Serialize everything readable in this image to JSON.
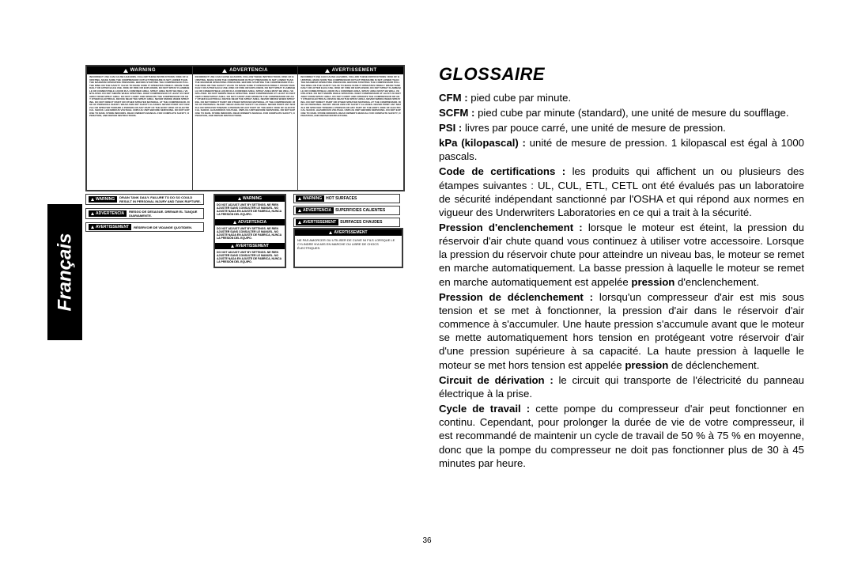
{
  "tab_label": "Français",
  "page_number": "36",
  "large_warning": {
    "headers": [
      "WARNING",
      "ADVERTENCIA",
      "AVERTISSEMENT"
    ],
    "filler": "INCORRECT USE CAN CAUSE HAZARDS. FOLLOW THESE INSTRUCTIONS: RISK OF BURSTING. MAKE SURE THE COMPRESSOR OUTLET PRESSURE IS SET LOWER THAN THE MAXIMUM OPERATING PRESSURE. BEFORE STARTING THE COMPRESSOR PULL THE RING ON THE SAFETY VALVE TO MAKE SURE IT OPERATES FREELY. DRAIN TANK DAILY OR AFTER EACH USE. RISK OF FIRE OR EXPLOSION. DO NOT SPRAY FLAMMABLE OR COMBUSTIBLE LIQUID IN A CONFINED AREA. SPRAY AREA MUST BE WELL VENTILATED. DO NOT SMOKE WHILE SPRAYING. KEEP COMPRESSOR AT LEAST 20 FEET AWAY FROM SPRAY AREA. DO NOT CARRY AND OPERATE THE COMPRESSOR OR ANY OTHER ELECTRICAL DEVICE NEAR THE SPRAY AREA. NEVER SMOKE WHEN SPRAYING. DO NOT DIRECT PAINT OR OTHER SPRAYED MATERIAL AT THE COMPRESSOR. RISK OF PERSONAL INJURY. WEAR ANSI Z87 SAFETY GLASSES. NEVER POINT ANY NOZZLE OR SPRAYER TOWARD A PERSON OR ANY PART OF THE BODY. RISK OF ELECTRICAL SHOCK. HAZARDOUS VOLTAGE. UNPLUG UNIT BEFORE SERVICING. DO NOT EXPOSE TO RAIN. STORE INDOORS. READ OWNER'S MANUAL FOR COMPLETE SAFETY, OPERATION, AND REPAIR INSTRUCTIONS."
  },
  "side_labels": [
    {
      "badge": "WARNING",
      "rest": "DRAIN TANK DAILY. FAILURE TO DO SO COULD RESULT IN PERSONAL INJURY AND TANK RUPTURE."
    },
    {
      "badge": "ADVERTENCIA",
      "rest": "RIESGO DE DESAGUE. DRENAR EL TANQUE DIARIAMENTE."
    },
    {
      "badge": "AVERTISSEMENT",
      "rest": "RÉSERVOIR DE VIDANGE QUOTIDIEN."
    }
  ],
  "small_box": {
    "headers": [
      "WARNING",
      "ADVERTENCIA",
      "AVERTISSEMENT"
    ],
    "body": "DO NOT ADJUST UNIT BY SETTINGS.\nNE RIEN AJUSTER SANS CONSULTER LE MANUEL.\nNO AJUSTE NADA EN AJUSTE DE FABRICA, NUNCA LA PRESIÓN DEL EQUIPO."
  },
  "hot_rows": [
    {
      "badge": "WARNING",
      "rest": "HOT SURFACES"
    },
    {
      "badge": "ADVERTENCIA",
      "rest": "SUPERFICIES CALIENTES"
    },
    {
      "badge": "AVERTISSEMENT",
      "rest": "SURFACES CHAUDES"
    }
  ],
  "wide_label": {
    "header": "AVERTISSEMENT",
    "body": "NE PAS AMORCER OU UTILISER DE CUIVE NI FILS LORSQUE LE CYLINDRE N'A MIS EN MARCHE OU LIBRE DE CHOCS ÉLECTRIQUES."
  },
  "glossary": {
    "title": "GLOSSAIRE",
    "entries": [
      {
        "term": "CFM :",
        "def": " pied cube par minute."
      },
      {
        "term": "SCFM :",
        "def": " pied cube par minute (standard), une unité de mesure du soufflage."
      },
      {
        "term": "PSI :",
        "def": " livres par pouce carré, une unité de mesure de pression."
      },
      {
        "term": "kPa (kilopascal) :",
        "def": " unité de mesure de pression. 1 kilopascal est égal à 1000 pascals."
      },
      {
        "term": "Code de certifications :",
        "def": " les produits qui affichent un ou plusieurs des étampes suivantes : UL, CUL, ETL, CETL ont été évalués pas un laboratoire de sécurité indépendant sanctionné par l'OSHA et qui répond aux normes en vigueur des Underwriters Laboratories en ce qui a trait à la sécurité."
      },
      {
        "term": "Pression d'enclenchement :",
        "def": " lorsque le moteur est éteint, la pression du réservoir d'air chute quand vous continuez à utiliser votre accessoire. Lorsque la pression du réservoir chute pour atteindre un niveau bas, le moteur se remet en marche automatiquement. La basse pression à laquelle le moteur se remet en marche automatiquement est appelée ",
        "bold2": "pression",
        "def2": " d'enclenchement."
      },
      {
        "term": "Pression de déclenchement :",
        "def": " lorsqu'un compresseur d'air est mis sous tension et se met à fonctionner, la pression d'air dans le réservoir d'air commence à s'accumuler. Une haute pression s'accumule avant que le moteur se mette automatiquement hors tension en protégeant votre réservoir d'air d'une pression supérieure à sa capacité. La haute pression à laquelle le moteur se met hors tension est appelée ",
        "bold2": "pression",
        "def2": " de déclenchement."
      },
      {
        "term": "Circuit de dérivation :",
        "def": " le circuit qui transporte de l'électricité du panneau électrique à la prise."
      },
      {
        "term": "Cycle de travail :",
        "def": " cette pompe du compresseur d'air peut fonctionner en continu. Cependant, pour prolonger la durée de vie de votre compresseur, il est recommandé de maintenir un cycle de travail de 50 % à 75 % en moyenne, donc que la pompe du compresseur ne doit pas fonctionner plus de 30 à 45 minutes par heure."
      }
    ]
  }
}
